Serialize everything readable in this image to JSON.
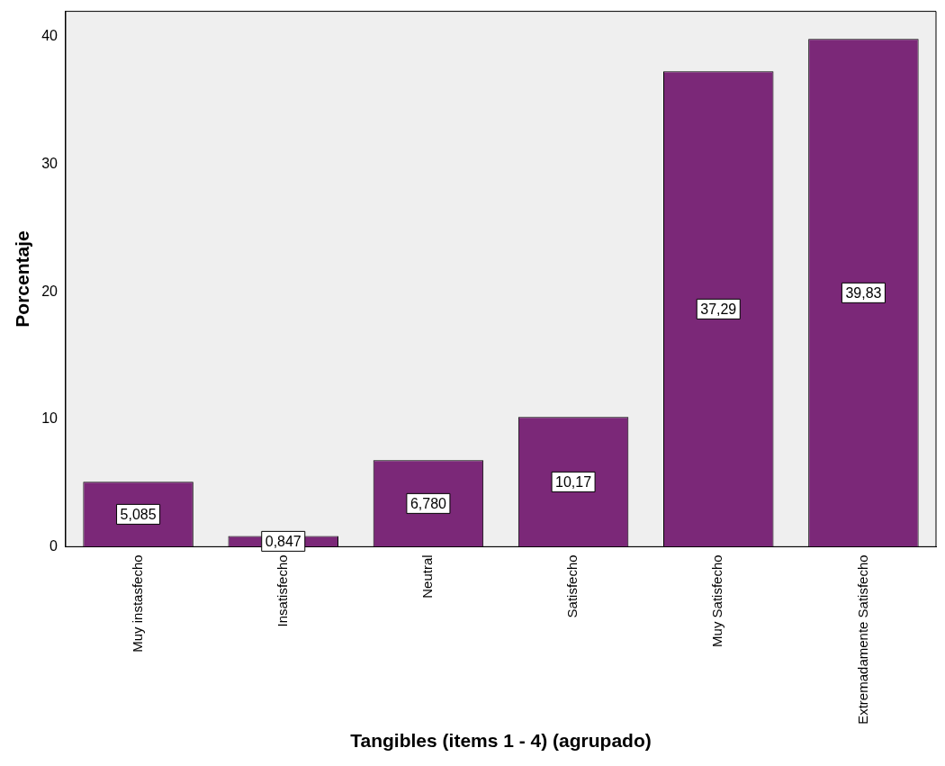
{
  "chart_data": {
    "type": "bar",
    "xlabel": "Tangibles (items 1 - 4) (agrupado)",
    "ylabel": "Porcentaje",
    "categories": [
      "Muy instasfecho",
      "Insatisfecho",
      "Neutral",
      "Satisfecho",
      "Muy Satisfecho",
      "Extremadamente Satisfecho"
    ],
    "values": [
      5.085,
      0.847,
      6.78,
      10.17,
      37.29,
      39.83
    ],
    "value_labels": [
      "5,085",
      "0,847",
      "6,780",
      "10,17",
      "37,29",
      "39,83"
    ],
    "color": "#7b2878",
    "ylim": [
      0,
      42
    ],
    "yticks": [
      0,
      10,
      20,
      30,
      40
    ],
    "grid": false,
    "legend": false
  }
}
